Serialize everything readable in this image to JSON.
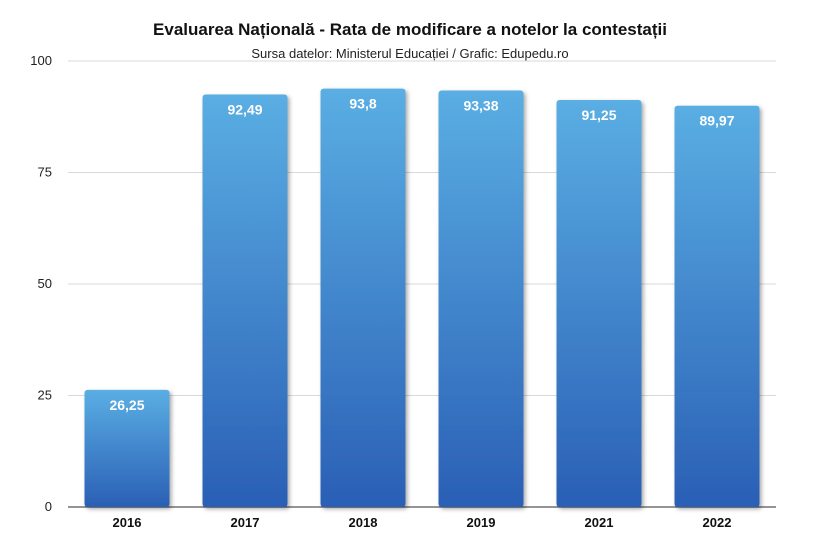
{
  "chart_data": {
    "type": "bar",
    "title": "Evaluarea Națională - Rata de modificare a notelor la contestații",
    "subtitle": "Sursa datelor: Ministerul Educației / Grafic: Edupedu.ro",
    "categories": [
      "2016",
      "2017",
      "2018",
      "2019",
      "2021",
      "2022"
    ],
    "values": [
      26.25,
      92.49,
      93.8,
      93.38,
      91.25,
      89.97
    ],
    "value_labels": [
      "26,25",
      "92,49",
      "93,8",
      "93,38",
      "91,25",
      "89,97"
    ],
    "ylim": [
      0,
      100
    ],
    "yticks": [
      0,
      25,
      50,
      75,
      100
    ],
    "grid": true,
    "bar_color_top": "#5aaee3",
    "bar_color_bottom": "#2a5fb5"
  }
}
